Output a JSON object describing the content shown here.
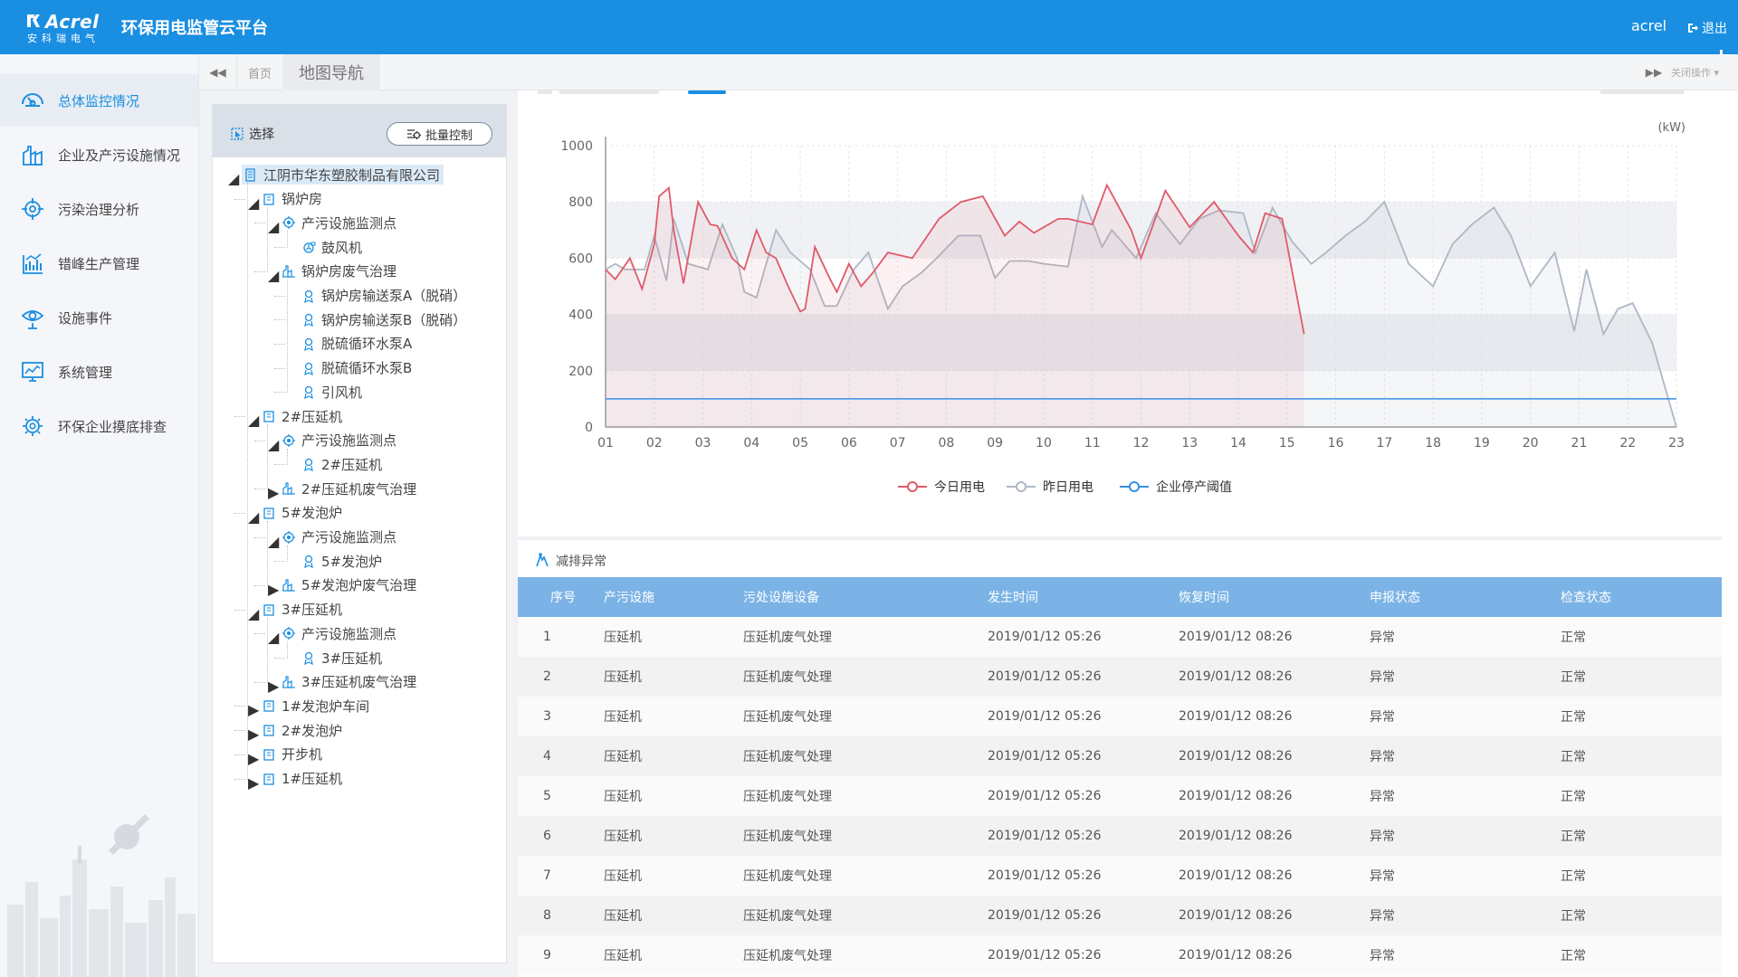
{
  "header": {
    "brand": "Acrel",
    "brand_sub": "安科瑞电气",
    "app_title": "环保用电监管云平台",
    "user": "acrel",
    "logout_label": "退出",
    "colors": {
      "bar": "#1a8ee1"
    }
  },
  "sidebar": {
    "items": [
      {
        "label": "总体监控情况",
        "icon": "dashboard-gauge-icon",
        "active": true
      },
      {
        "label": "企业及产污设施情况",
        "icon": "factory-icon",
        "active": false
      },
      {
        "label": "污染治理分析",
        "icon": "target-icon",
        "active": false
      },
      {
        "label": "错峰生产管理",
        "icon": "production-chart-icon",
        "active": false
      },
      {
        "label": "设施事件",
        "icon": "event-eye-icon",
        "active": false
      },
      {
        "label": "系统管理",
        "icon": "monitor-chart-icon",
        "active": false
      },
      {
        "label": "环保企业摸底排查",
        "icon": "gear-search-icon",
        "active": false
      }
    ]
  },
  "tabs": {
    "home": "首页",
    "current": "地图导航",
    "ops": "关闭操作"
  },
  "tree": {
    "select_label": "选择",
    "batch_label": "批量控制",
    "nodes": [
      {
        "label": "江阴市华东塑胶制品有限公司",
        "level": 0,
        "icon": "company-icon",
        "toggle": "open"
      },
      {
        "label": "锅炉房",
        "level": 1,
        "icon": "workshop-icon",
        "toggle": "open"
      },
      {
        "label": "产污设施监测点",
        "level": 2,
        "icon": "monitor-point-icon",
        "toggle": "open"
      },
      {
        "label": "鼓风机",
        "level": 3,
        "icon": "blower-icon",
        "toggle": "none"
      },
      {
        "label": "锅炉房废气治理",
        "level": 2,
        "icon": "treatment-icon",
        "toggle": "open"
      },
      {
        "label": "锅炉房输送泵A（脱硝）",
        "level": 3,
        "icon": "device-icon",
        "toggle": "none"
      },
      {
        "label": "锅炉房输送泵B（脱硝）",
        "level": 3,
        "icon": "device-icon",
        "toggle": "none"
      },
      {
        "label": "脱硫循环水泵A",
        "level": 3,
        "icon": "device-icon",
        "toggle": "none"
      },
      {
        "label": "脱硫循环水泵B",
        "level": 3,
        "icon": "device-icon",
        "toggle": "none"
      },
      {
        "label": "引风机",
        "level": 3,
        "icon": "device-icon",
        "toggle": "none"
      },
      {
        "label": "2#压延机",
        "level": 1,
        "icon": "workshop-icon",
        "toggle": "open"
      },
      {
        "label": "产污设施监测点",
        "level": 2,
        "icon": "monitor-point-icon",
        "toggle": "open"
      },
      {
        "label": "2#压延机",
        "level": 3,
        "icon": "device-icon",
        "toggle": "none"
      },
      {
        "label": "2#压延机废气治理",
        "level": 2,
        "icon": "treatment-icon",
        "toggle": "closed"
      },
      {
        "label": "5#发泡炉",
        "level": 1,
        "icon": "workshop-icon",
        "toggle": "open"
      },
      {
        "label": "产污设施监测点",
        "level": 2,
        "icon": "monitor-point-icon",
        "toggle": "open"
      },
      {
        "label": "5#发泡炉",
        "level": 3,
        "icon": "device-icon",
        "toggle": "none"
      },
      {
        "label": "5#发泡炉废气治理",
        "level": 2,
        "icon": "treatment-icon",
        "toggle": "closed"
      },
      {
        "label": "3#压延机",
        "level": 1,
        "icon": "workshop-icon",
        "toggle": "open"
      },
      {
        "label": "产污设施监测点",
        "level": 2,
        "icon": "monitor-point-icon",
        "toggle": "open"
      },
      {
        "label": "3#压延机",
        "level": 3,
        "icon": "device-icon",
        "toggle": "none"
      },
      {
        "label": "3#压延机废气治理",
        "level": 2,
        "icon": "treatment-icon",
        "toggle": "closed"
      },
      {
        "label": "1#发泡炉车间",
        "level": 1,
        "icon": "workshop-icon",
        "toggle": "closed"
      },
      {
        "label": "2#发泡炉",
        "level": 1,
        "icon": "workshop-icon",
        "toggle": "closed"
      },
      {
        "label": "开步机",
        "level": 1,
        "icon": "workshop-icon",
        "toggle": "closed"
      },
      {
        "label": "1#压延机",
        "level": 1,
        "icon": "workshop-icon",
        "toggle": "closed"
      }
    ]
  },
  "chart_data": {
    "type": "line",
    "unit_label": "(kW)",
    "ylim": [
      0,
      1000
    ],
    "yticks": [
      0,
      200,
      400,
      600,
      800,
      1000
    ],
    "x_ticks": [
      "01",
      "02",
      "03",
      "04",
      "05",
      "06",
      "07",
      "08",
      "09",
      "10",
      "11",
      "12",
      "13",
      "14",
      "15",
      "16",
      "17",
      "18",
      "19",
      "20",
      "21",
      "22",
      "23"
    ],
    "xlim": [
      1,
      23
    ],
    "grid": true,
    "legend_position": "bottom-center",
    "series": [
      {
        "name": "今日用电",
        "color": "#e05a6b",
        "x": [
          1,
          1.2,
          1.5,
          1.75,
          2,
          2.1,
          2.3,
          2.4,
          2.6,
          2.9,
          3.15,
          3.3,
          3.6,
          3.85,
          4.1,
          4.3,
          4.5,
          4.75,
          5,
          5.1,
          5.3,
          5.6,
          5.75,
          6,
          6.25,
          6.5,
          6.8,
          7.3,
          7.85,
          8.3,
          8.75,
          9.2,
          9.5,
          9.8,
          10.3,
          10.5,
          11,
          11.3,
          11.8,
          12,
          12.5,
          13,
          13.5,
          14,
          14.3,
          14.55,
          14.9,
          15.35
        ],
        "y": [
          560,
          525,
          600,
          490,
          650,
          820,
          850,
          700,
          510,
          800,
          720,
          715,
          600,
          560,
          700,
          620,
          600,
          500,
          410,
          420,
          640,
          530,
          480,
          580,
          500,
          550,
          620,
          600,
          740,
          800,
          820,
          680,
          730,
          690,
          740,
          740,
          720,
          860,
          700,
          600,
          840,
          710,
          800,
          680,
          620,
          760,
          740,
          330
        ]
      },
      {
        "name": "昨日用电",
        "color": "#aeb7c4",
        "x": [
          1,
          1.2,
          1.4,
          1.8,
          2,
          2.25,
          2.4,
          2.7,
          3.1,
          3.4,
          3.7,
          3.85,
          4.1,
          4.5,
          4.8,
          5.2,
          5.5,
          5.75,
          6.1,
          6.4,
          6.8,
          7.1,
          7.5,
          7.8,
          8.25,
          8.7,
          9,
          9.3,
          9.7,
          10,
          10.5,
          10.8,
          11.2,
          11.4,
          11.9,
          12.3,
          12.8,
          13.2,
          13.6,
          14.1,
          14.35,
          14.7,
          15.1,
          15.5,
          15.8,
          16.2,
          16.6,
          17,
          17.5,
          18,
          18.4,
          18.8,
          19.25,
          19.6,
          20,
          20.5,
          20.9,
          21.15,
          21.5,
          21.8,
          22.1,
          22.5,
          23
        ],
        "y": [
          560,
          580,
          560,
          560,
          680,
          520,
          740,
          580,
          560,
          720,
          600,
          480,
          460,
          700,
          620,
          560,
          430,
          430,
          560,
          620,
          420,
          500,
          550,
          600,
          680,
          680,
          530,
          590,
          590,
          580,
          570,
          820,
          640,
          700,
          600,
          760,
          650,
          740,
          770,
          760,
          620,
          780,
          660,
          580,
          620,
          680,
          730,
          800,
          580,
          500,
          650,
          720,
          780,
          680,
          500,
          620,
          340,
          560,
          330,
          420,
          440,
          300,
          0
        ]
      },
      {
        "name": "企业停产阈值",
        "color": "#3a8ee6",
        "x": [
          1,
          23
        ],
        "y": [
          100,
          100
        ]
      }
    ]
  },
  "events_table": {
    "title": "减排异常",
    "columns": [
      "序号",
      "产污设施",
      "污处设施设备",
      "发生时间",
      "恢复时间",
      "申报状态",
      "检查状态"
    ],
    "rows": [
      [
        "1",
        "压延机",
        "压延机废气处理",
        "2019/01/12  05:26",
        "2019/01/12  08:26",
        "异常",
        "正常"
      ],
      [
        "2",
        "压延机",
        "压延机废气处理",
        "2019/01/12  05:26",
        "2019/01/12  08:26",
        "异常",
        "正常"
      ],
      [
        "3",
        "压延机",
        "压延机废气处理",
        "2019/01/12  05:26",
        "2019/01/12  08:26",
        "异常",
        "正常"
      ],
      [
        "4",
        "压延机",
        "压延机废气处理",
        "2019/01/12  05:26",
        "2019/01/12  08:26",
        "异常",
        "正常"
      ],
      [
        "5",
        "压延机",
        "压延机废气处理",
        "2019/01/12  05:26",
        "2019/01/12  08:26",
        "异常",
        "正常"
      ],
      [
        "6",
        "压延机",
        "压延机废气处理",
        "2019/01/12  05:26",
        "2019/01/12  08:26",
        "异常",
        "正常"
      ],
      [
        "7",
        "压延机",
        "压延机废气处理",
        "2019/01/12  05:26",
        "2019/01/12  08:26",
        "异常",
        "正常"
      ],
      [
        "8",
        "压延机",
        "压延机废气处理",
        "2019/01/12  05:26",
        "2019/01/12  08:26",
        "异常",
        "正常"
      ],
      [
        "9",
        "压延机",
        "压延机废气处理",
        "2019/01/12  05:26",
        "2019/01/12  08:26",
        "异常",
        "正常"
      ]
    ]
  }
}
